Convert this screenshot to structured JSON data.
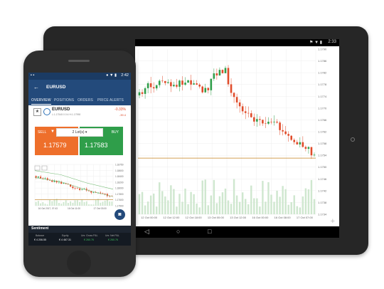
{
  "tablet": {
    "status_time": "2:33",
    "y_ticks": [
      "1.1790",
      "1.1786",
      "1.1782",
      "1.1778",
      "1.1774",
      "1.1770",
      "1.1766",
      "1.1762",
      "1.1758",
      "1.1754",
      "1.1750",
      "1.1746",
      "1.1742",
      "1.1738",
      "1.1734"
    ],
    "x_ticks": [
      "12 Oct 00:00",
      "12 Oct 12:00",
      "12 Oct 18:00",
      "13 Oct 00:00",
      "13 Oct 12:00",
      "16 Oct 00:00",
      "16 Oct 08:00",
      "17 Oct 07:00"
    ],
    "price_tag": "1.1758"
  },
  "phone": {
    "status_time": "2:42",
    "title": "EURUSD",
    "tabs": [
      "OVERVIEW",
      "POSITIONS",
      "ORDERS",
      "PRICE ALERTS"
    ],
    "instrument": {
      "symbol": "EURUSD",
      "change": "-0.33%",
      "range": "L:1.17545  0.0:4  H:1.17998",
      "points": "-39.4"
    },
    "sell_label": "SELL",
    "buy_label": "BUY",
    "lot_label": "2 Lot(s)",
    "sell_price": "1.17579",
    "buy_price": "1.17583",
    "chart_y_ticks": [
      "1.18750",
      "1.18600",
      "1.18400",
      "1.18200",
      "1.18000",
      "1.17800",
      "1.17600",
      "1.17500"
    ],
    "chart_x_ticks": [
      "16 Oct 2017, 07:43",
      "16 Oct 11:00",
      "17 Oct 03:00"
    ],
    "sentiment_label": "Sentiment",
    "account": {
      "balance_label": "Balance",
      "balance_value": "€ 4 206.55",
      "equity_label": "Equity",
      "equity_value": "€ 4 467.31",
      "gross_label": "Unr. Gross P&L",
      "gross_value": "€ 260.76",
      "net_label": "Unr. Net P&L",
      "net_value": "€ 260.76"
    }
  },
  "colors": {
    "phone_header": "#234a7b",
    "sell": "#ee6f2b",
    "buy": "#2f9e4a",
    "candle_up": "#2f9e4a",
    "candle_down": "#e04b2a",
    "price_line": "#c4801f",
    "volume": "#cfe7cf"
  }
}
